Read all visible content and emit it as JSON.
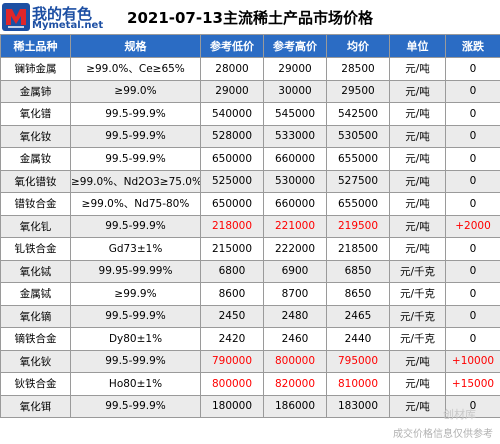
{
  "logo": {
    "name_cn": "我的有色",
    "name_en": "Mymetal.net"
  },
  "title": "2021-07-13主流稀土产品市场价格",
  "columns": [
    "稀土品种",
    "规格",
    "参考低价",
    "参考高价",
    "均价",
    "单位",
    "涨跌"
  ],
  "rows": [
    {
      "name": "镧铈金属",
      "spec": "≥99.0%、Ce≥65%",
      "low": "28000",
      "high": "29000",
      "avg": "28500",
      "unit": "元/吨",
      "change": "0",
      "highlight": false
    },
    {
      "name": "金属铈",
      "spec": "≥99.0%",
      "low": "29000",
      "high": "30000",
      "avg": "29500",
      "unit": "元/吨",
      "change": "0",
      "highlight": false
    },
    {
      "name": "氧化镨",
      "spec": "99.5-99.9%",
      "low": "540000",
      "high": "545000",
      "avg": "542500",
      "unit": "元/吨",
      "change": "0",
      "highlight": false
    },
    {
      "name": "氧化钕",
      "spec": "99.5-99.9%",
      "low": "528000",
      "high": "533000",
      "avg": "530500",
      "unit": "元/吨",
      "change": "0",
      "highlight": false
    },
    {
      "name": "金属钕",
      "spec": "99.5-99.9%",
      "low": "650000",
      "high": "660000",
      "avg": "655000",
      "unit": "元/吨",
      "change": "0",
      "highlight": false
    },
    {
      "name": "氧化镨钕",
      "spec": "≥99.0%、Nd2O3≥75.0%",
      "low": "525000",
      "high": "530000",
      "avg": "527500",
      "unit": "元/吨",
      "change": "0",
      "highlight": false
    },
    {
      "name": "镨钕合金",
      "spec": "≥99.0%、Nd75-80%",
      "low": "650000",
      "high": "660000",
      "avg": "655000",
      "unit": "元/吨",
      "change": "0",
      "highlight": false
    },
    {
      "name": "氧化钆",
      "spec": "99.5-99.9%",
      "low": "218000",
      "high": "221000",
      "avg": "219500",
      "unit": "元/吨",
      "change": "+2000",
      "highlight": true
    },
    {
      "name": "钆铁合金",
      "spec": "Gd73±1%",
      "low": "215000",
      "high": "222000",
      "avg": "218500",
      "unit": "元/吨",
      "change": "0",
      "highlight": false
    },
    {
      "name": "氧化铽",
      "spec": "99.95-99.99%",
      "low": "6800",
      "high": "6900",
      "avg": "6850",
      "unit": "元/千克",
      "change": "0",
      "highlight": false
    },
    {
      "name": "金属铽",
      "spec": "≥99.9%",
      "low": "8600",
      "high": "8700",
      "avg": "8650",
      "unit": "元/千克",
      "change": "0",
      "highlight": false
    },
    {
      "name": "氧化镝",
      "spec": "99.5-99.9%",
      "low": "2450",
      "high": "2480",
      "avg": "2465",
      "unit": "元/千克",
      "change": "0",
      "highlight": false
    },
    {
      "name": "镝铁合金",
      "spec": "Dy80±1%",
      "low": "2420",
      "high": "2460",
      "avg": "2440",
      "unit": "元/千克",
      "change": "0",
      "highlight": false
    },
    {
      "name": "氧化钬",
      "spec": "99.5-99.9%",
      "low": "790000",
      "high": "800000",
      "avg": "795000",
      "unit": "元/吨",
      "change": "+10000",
      "highlight": true
    },
    {
      "name": "钬铁合金",
      "spec": "Ho80±1%",
      "low": "800000",
      "high": "820000",
      "avg": "810000",
      "unit": "元/吨",
      "change": "+15000",
      "highlight": true
    },
    {
      "name": "氧化铒",
      "spec": "99.5-99.9%",
      "low": "180000",
      "high": "186000",
      "avg": "183000",
      "unit": "元/吨",
      "change": "0",
      "highlight": false
    }
  ],
  "watermark": {
    "text": "成交价格信息仅供参考",
    "icon_text": "创材库",
    "icon": "brand-watermark-icon"
  },
  "colors": {
    "header_bg": "#2b6cc4",
    "highlight": "#ff0000",
    "alt_row": "#ebebeb",
    "logo_red": "#e0262b",
    "logo_blue": "#1d4fa3"
  }
}
